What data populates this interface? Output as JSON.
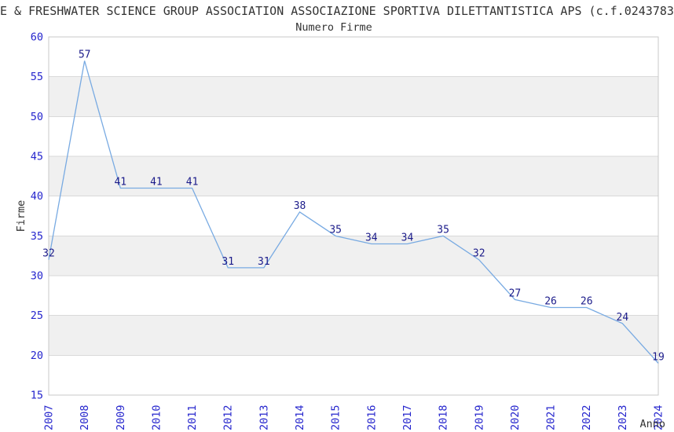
{
  "header": {
    "title": "E & FRESHWATER SCIENCE GROUP ASSOCIATION ASSOCIAZIONE SPORTIVA DILETTANTISTICA APS (c.f.0243783",
    "subtitle": "Numero Firme"
  },
  "chart_data": {
    "type": "line",
    "title": "Numero Firme",
    "xlabel": "Anno",
    "ylabel": "Firme",
    "categories": [
      "2007",
      "2008",
      "2009",
      "2010",
      "2011",
      "2012",
      "2013",
      "2014",
      "2015",
      "2016",
      "2017",
      "2018",
      "2019",
      "2020",
      "2021",
      "2022",
      "2023",
      "2024"
    ],
    "series": [
      {
        "name": "Numero Firme",
        "values": [
          32,
          57,
          41,
          41,
          41,
          31,
          31,
          38,
          35,
          34,
          34,
          35,
          32,
          27,
          26,
          26,
          24,
          19
        ]
      }
    ],
    "ylim": [
      15,
      60
    ],
    "ytick_step": 5,
    "show_point_labels": true,
    "legend": "none",
    "grid": "horizontal",
    "background_bands": "alternating gray bands between gridlines: 20-25, 30-35, 40-45, 50-55",
    "x_tick_rotation": -90
  },
  "colors": {
    "line": "#78aae2",
    "point_label": "#1b1b8a",
    "tick_label": "#2525cd",
    "axis_text": "#333333",
    "title_text": "#333333",
    "band": "#f0f0f0",
    "grid": "#d9d9d9",
    "plot_border": "#c8c8c8",
    "background": "#ffffff"
  }
}
